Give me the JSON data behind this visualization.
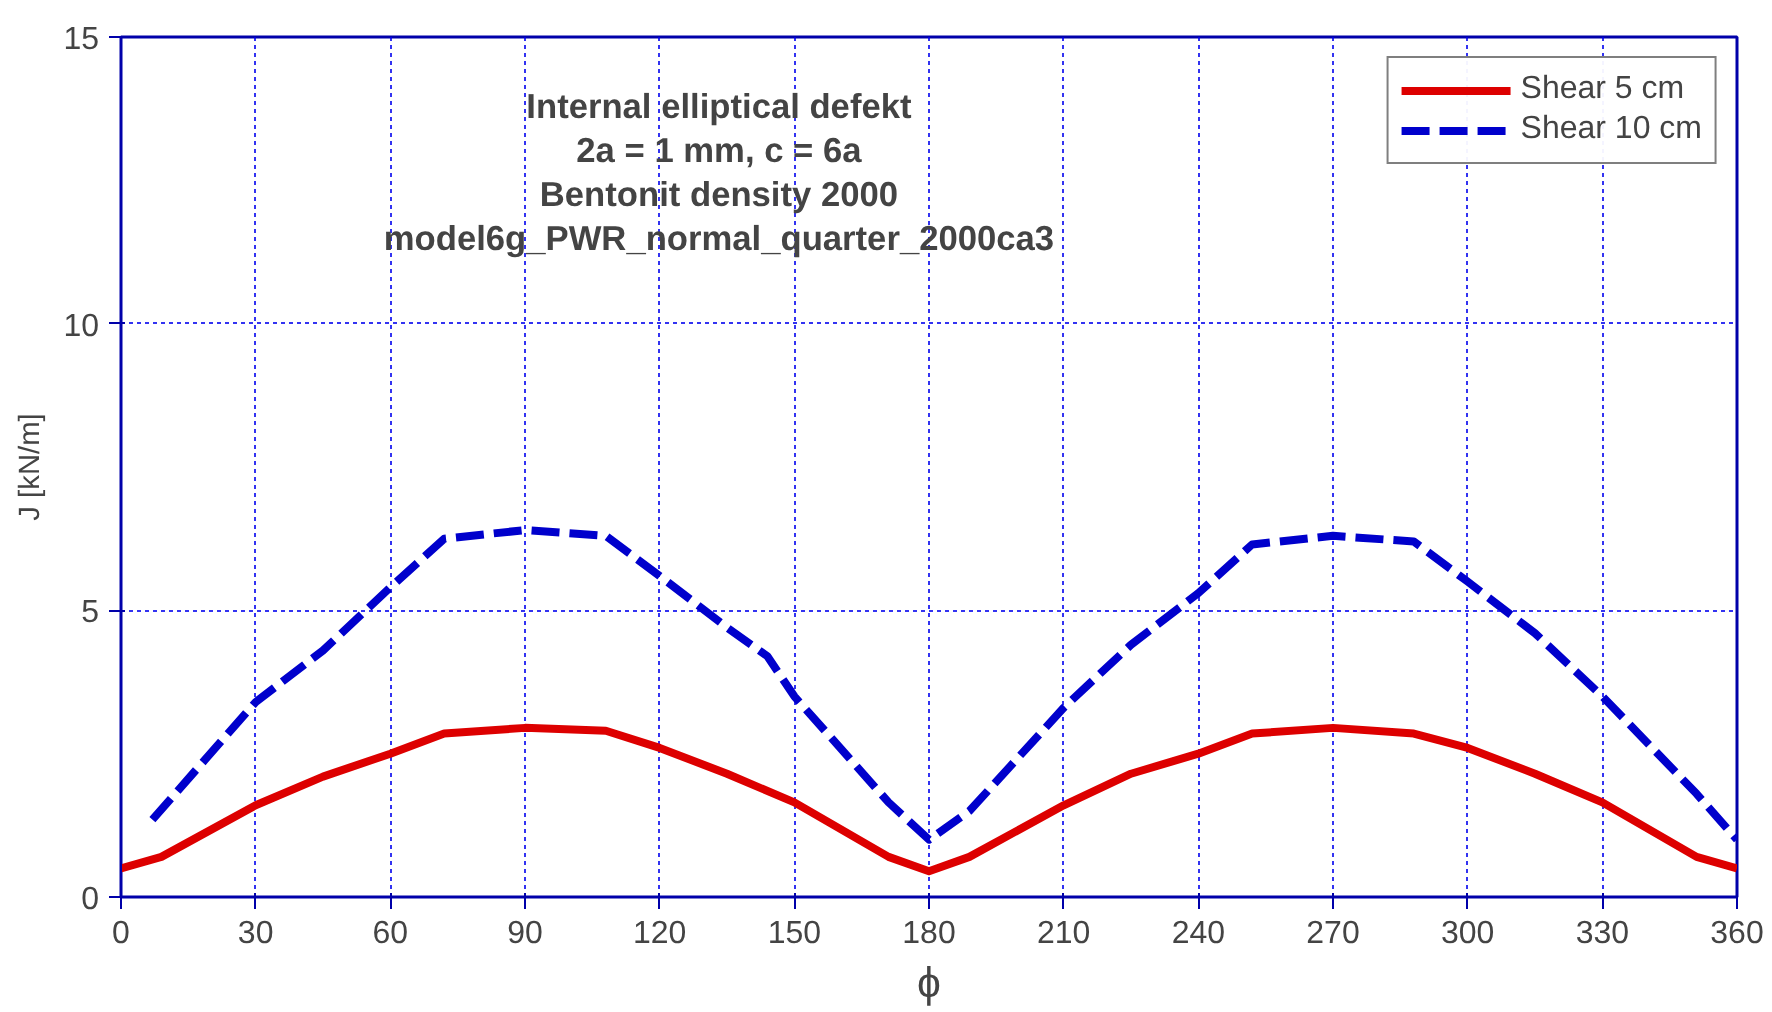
{
  "chart_data": {
    "type": "line",
    "title": "Internal elliptical defekt",
    "subtitle": "2a = 1 mm, c = 6a\nBentonit density 2000\nmodel6g_PWR_normal_quarter_2000ca3",
    "xlabel": "ϕ",
    "ylabel": "J [kN/m]",
    "xlim": [
      0,
      360
    ],
    "xticks": [
      0,
      30,
      60,
      90,
      120,
      150,
      180,
      210,
      240,
      270,
      300,
      330,
      360
    ],
    "ylim": [
      0,
      15
    ],
    "yticks": [
      0,
      5,
      10,
      15
    ],
    "grid": true,
    "legend": "top right",
    "series": [
      {
        "name": "Shear 5 cm",
        "color": "#dd0000",
        "line_style": "solid",
        "x": [
          0,
          9,
          30,
          45,
          60,
          72,
          90,
          108,
          120,
          135,
          150,
          171,
          180,
          189,
          210,
          225,
          240,
          252,
          270,
          288,
          300,
          315,
          330,
          351,
          360
        ],
        "values": [
          0.5,
          0.7,
          1.6,
          2.1,
          2.5,
          2.85,
          2.95,
          2.9,
          2.6,
          2.15,
          1.65,
          0.7,
          0.45,
          0.7,
          1.6,
          2.15,
          2.5,
          2.85,
          2.95,
          2.85,
          2.6,
          2.15,
          1.65,
          0.7,
          0.5
        ]
      },
      {
        "name": "Shear 10 cm",
        "color": "#0000cc",
        "line_style": "dashed",
        "x": [
          7,
          30,
          45,
          60,
          72,
          90,
          108,
          120,
          135,
          144,
          150,
          171,
          180,
          189,
          210,
          225,
          240,
          252,
          270,
          288,
          300,
          315,
          330,
          351,
          360
        ],
        "values": [
          1.35,
          3.4,
          4.3,
          5.4,
          6.25,
          6.4,
          6.3,
          5.6,
          4.7,
          4.2,
          3.5,
          1.65,
          1.0,
          1.5,
          3.3,
          4.4,
          5.3,
          6.15,
          6.3,
          6.2,
          5.5,
          4.6,
          3.5,
          1.8,
          1.0
        ]
      }
    ]
  }
}
